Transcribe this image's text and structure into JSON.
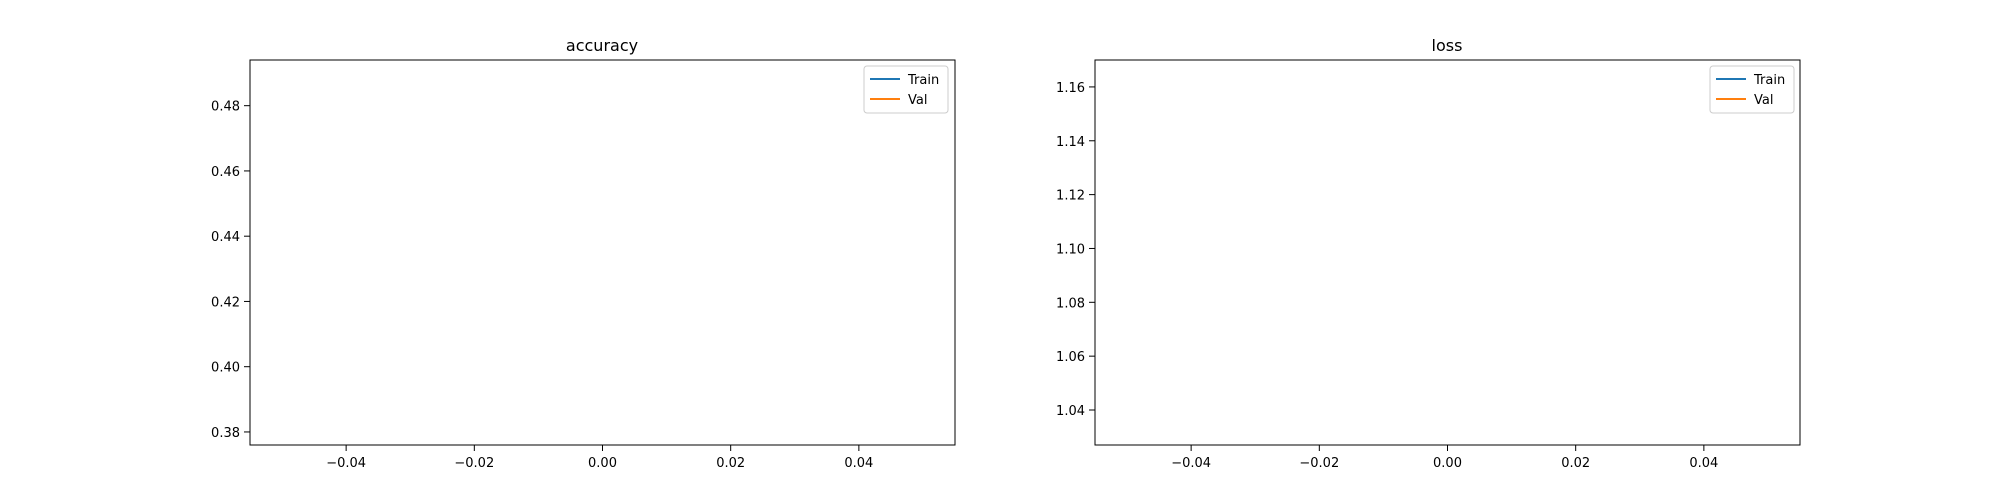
{
  "chart_data": [
    {
      "type": "line",
      "title": "accuracy",
      "xlabel": "",
      "ylabel": "",
      "xlim": [
        -0.055,
        0.055
      ],
      "ylim": [
        0.376,
        0.494
      ],
      "x_ticks": [
        -0.04,
        -0.02,
        0.0,
        0.02,
        0.04
      ],
      "x_tick_labels": [
        "−0.04",
        "−0.02",
        "0.00",
        "0.02",
        "0.04"
      ],
      "y_ticks": [
        0.38,
        0.4,
        0.42,
        0.44,
        0.46,
        0.48
      ],
      "y_tick_labels": [
        "0.38",
        "0.40",
        "0.42",
        "0.44",
        "0.46",
        "0.48"
      ],
      "grid": false,
      "legend_position": "upper right",
      "series": [
        {
          "name": "Train",
          "color": "#1f77b4",
          "x": [],
          "y": []
        },
        {
          "name": "Val",
          "color": "#ff7f0e",
          "x": [],
          "y": []
        }
      ]
    },
    {
      "type": "line",
      "title": "loss",
      "xlabel": "",
      "ylabel": "",
      "xlim": [
        -0.055,
        0.055
      ],
      "ylim": [
        1.027,
        1.17
      ],
      "x_ticks": [
        -0.04,
        -0.02,
        0.0,
        0.02,
        0.04
      ],
      "x_tick_labels": [
        "−0.04",
        "−0.02",
        "0.00",
        "0.02",
        "0.04"
      ],
      "y_ticks": [
        1.04,
        1.06,
        1.08,
        1.1,
        1.12,
        1.14,
        1.16
      ],
      "y_tick_labels": [
        "1.04",
        "1.06",
        "1.08",
        "1.10",
        "1.12",
        "1.14",
        "1.16"
      ],
      "grid": false,
      "legend_position": "upper right",
      "series": [
        {
          "name": "Train",
          "color": "#1f77b4",
          "x": [],
          "y": []
        },
        {
          "name": "Val",
          "color": "#ff7f0e",
          "x": [],
          "y": []
        }
      ]
    }
  ]
}
